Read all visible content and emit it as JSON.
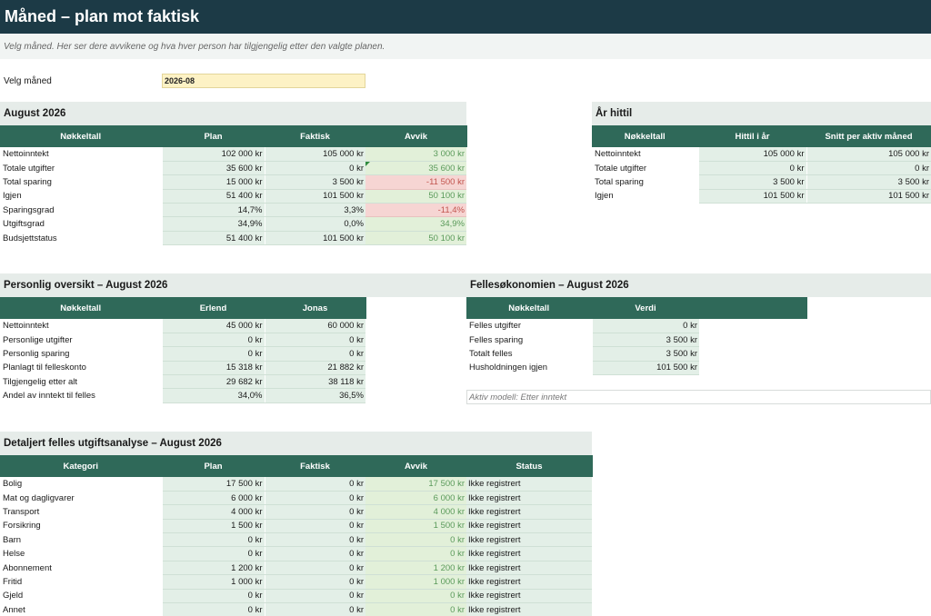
{
  "header": {
    "title": "Måned – plan mot faktisk",
    "subtitle": "Velg måned. Her ser dere avvikene og hva hver person har tilgjengelig etter den valgte planen."
  },
  "selector": {
    "label": "Velg måned",
    "value": "2026-08"
  },
  "month_summary": {
    "title": "August 2026",
    "headers": [
      "Nøkkeltall",
      "Plan",
      "Faktisk",
      "Avvik"
    ],
    "rows": [
      {
        "label": "Nettoinntekt",
        "plan": "102 000 kr",
        "actual": "105 000 kr",
        "diff": "3 000 kr",
        "status": "pos"
      },
      {
        "label": "Totale utgifter",
        "plan": "35 600 kr",
        "actual": "0 kr",
        "diff": "35 600 kr",
        "status": "pos"
      },
      {
        "label": "Total sparing",
        "plan": "15 000 kr",
        "actual": "3 500 kr",
        "diff": "-11 500 kr",
        "status": "neg"
      },
      {
        "label": "Igjen",
        "plan": "51 400 kr",
        "actual": "101 500 kr",
        "diff": "50 100 kr",
        "status": "pos"
      },
      {
        "label": "Sparingsgrad",
        "plan": "14,7%",
        "actual": "3,3%",
        "diff": "-11,4%",
        "status": "neg"
      },
      {
        "label": "Utgiftsgrad",
        "plan": "34,9%",
        "actual": "0,0%",
        "diff": "34,9%",
        "status": "pos"
      },
      {
        "label": "Budsjettstatus",
        "plan": "51 400 kr",
        "actual": "101 500 kr",
        "diff": "50 100 kr",
        "status": "pos"
      }
    ]
  },
  "ytd": {
    "title": "År hittil",
    "headers": [
      "Nøkkeltall",
      "Hittil i år",
      "Snitt per aktiv måned"
    ],
    "rows": [
      {
        "label": "Nettoinntekt",
        "ytd": "105 000 kr",
        "avg": "105 000 kr"
      },
      {
        "label": "Totale utgifter",
        "ytd": "0 kr",
        "avg": "0 kr"
      },
      {
        "label": "Total sparing",
        "ytd": "3 500 kr",
        "avg": "3 500 kr"
      },
      {
        "label": "Igjen",
        "ytd": "101 500 kr",
        "avg": "101 500 kr"
      }
    ]
  },
  "personal": {
    "title": "Personlig oversikt – August 2026",
    "headers": [
      "Nøkkeltall",
      "Erlend",
      "Jonas"
    ],
    "rows": [
      {
        "label": "Nettoinntekt",
        "a": "45 000 kr",
        "b": "60 000 kr"
      },
      {
        "label": "Personlige utgifter",
        "a": "0 kr",
        "b": "0 kr"
      },
      {
        "label": "Personlig sparing",
        "a": "0 kr",
        "b": "0 kr"
      },
      {
        "label": "Planlagt til felleskonto",
        "a": "15 318 kr",
        "b": "21 882 kr"
      },
      {
        "label": "Tilgjengelig etter alt",
        "a": "29 682 kr",
        "b": "38 118 kr"
      },
      {
        "label": "Andel av inntekt til felles",
        "a": "34,0%",
        "b": "36,5%"
      }
    ]
  },
  "shared": {
    "title": "Fellesøkonomien – August 2026",
    "headers": [
      "Nøkkeltall",
      "Verdi"
    ],
    "rows": [
      {
        "label": "Felles utgifter",
        "value": "0 kr"
      },
      {
        "label": "Felles sparing",
        "value": "3 500 kr"
      },
      {
        "label": "Totalt felles",
        "value": "3 500 kr"
      },
      {
        "label": "Husholdningen igjen",
        "value": "101 500 kr"
      }
    ],
    "model_note": "Aktiv modell: Etter inntekt"
  },
  "detail": {
    "title": "Detaljert felles utgiftsanalyse – August 2026",
    "headers": [
      "Kategori",
      "Plan",
      "Faktisk",
      "Avvik",
      "Status"
    ],
    "rows": [
      {
        "label": "Bolig",
        "plan": "17 500 kr",
        "actual": "0 kr",
        "diff": "17 500 kr",
        "status": "Ikke registrert"
      },
      {
        "label": "Mat og dagligvarer",
        "plan": "6 000 kr",
        "actual": "0 kr",
        "diff": "6 000 kr",
        "status": "Ikke registrert"
      },
      {
        "label": "Transport",
        "plan": "4 000 kr",
        "actual": "0 kr",
        "diff": "4 000 kr",
        "status": "Ikke registrert"
      },
      {
        "label": "Forsikring",
        "plan": "1 500 kr",
        "actual": "0 kr",
        "diff": "1 500 kr",
        "status": "Ikke registrert"
      },
      {
        "label": "Barn",
        "plan": "0 kr",
        "actual": "0 kr",
        "diff": "0 kr",
        "status": "Ikke registrert"
      },
      {
        "label": "Helse",
        "plan": "0 kr",
        "actual": "0 kr",
        "diff": "0 kr",
        "status": "Ikke registrert"
      },
      {
        "label": "Abonnement",
        "plan": "1 200 kr",
        "actual": "0 kr",
        "diff": "1 200 kr",
        "status": "Ikke registrert"
      },
      {
        "label": "Fritid",
        "plan": "1 000 kr",
        "actual": "0 kr",
        "diff": "1 000 kr",
        "status": "Ikke registrert"
      },
      {
        "label": "Gjeld",
        "plan": "0 kr",
        "actual": "0 kr",
        "diff": "0 kr",
        "status": "Ikke registrert"
      },
      {
        "label": "Annet",
        "plan": "0 kr",
        "actual": "0 kr",
        "diff": "0 kr",
        "status": "Ikke registrert"
      }
    ]
  }
}
